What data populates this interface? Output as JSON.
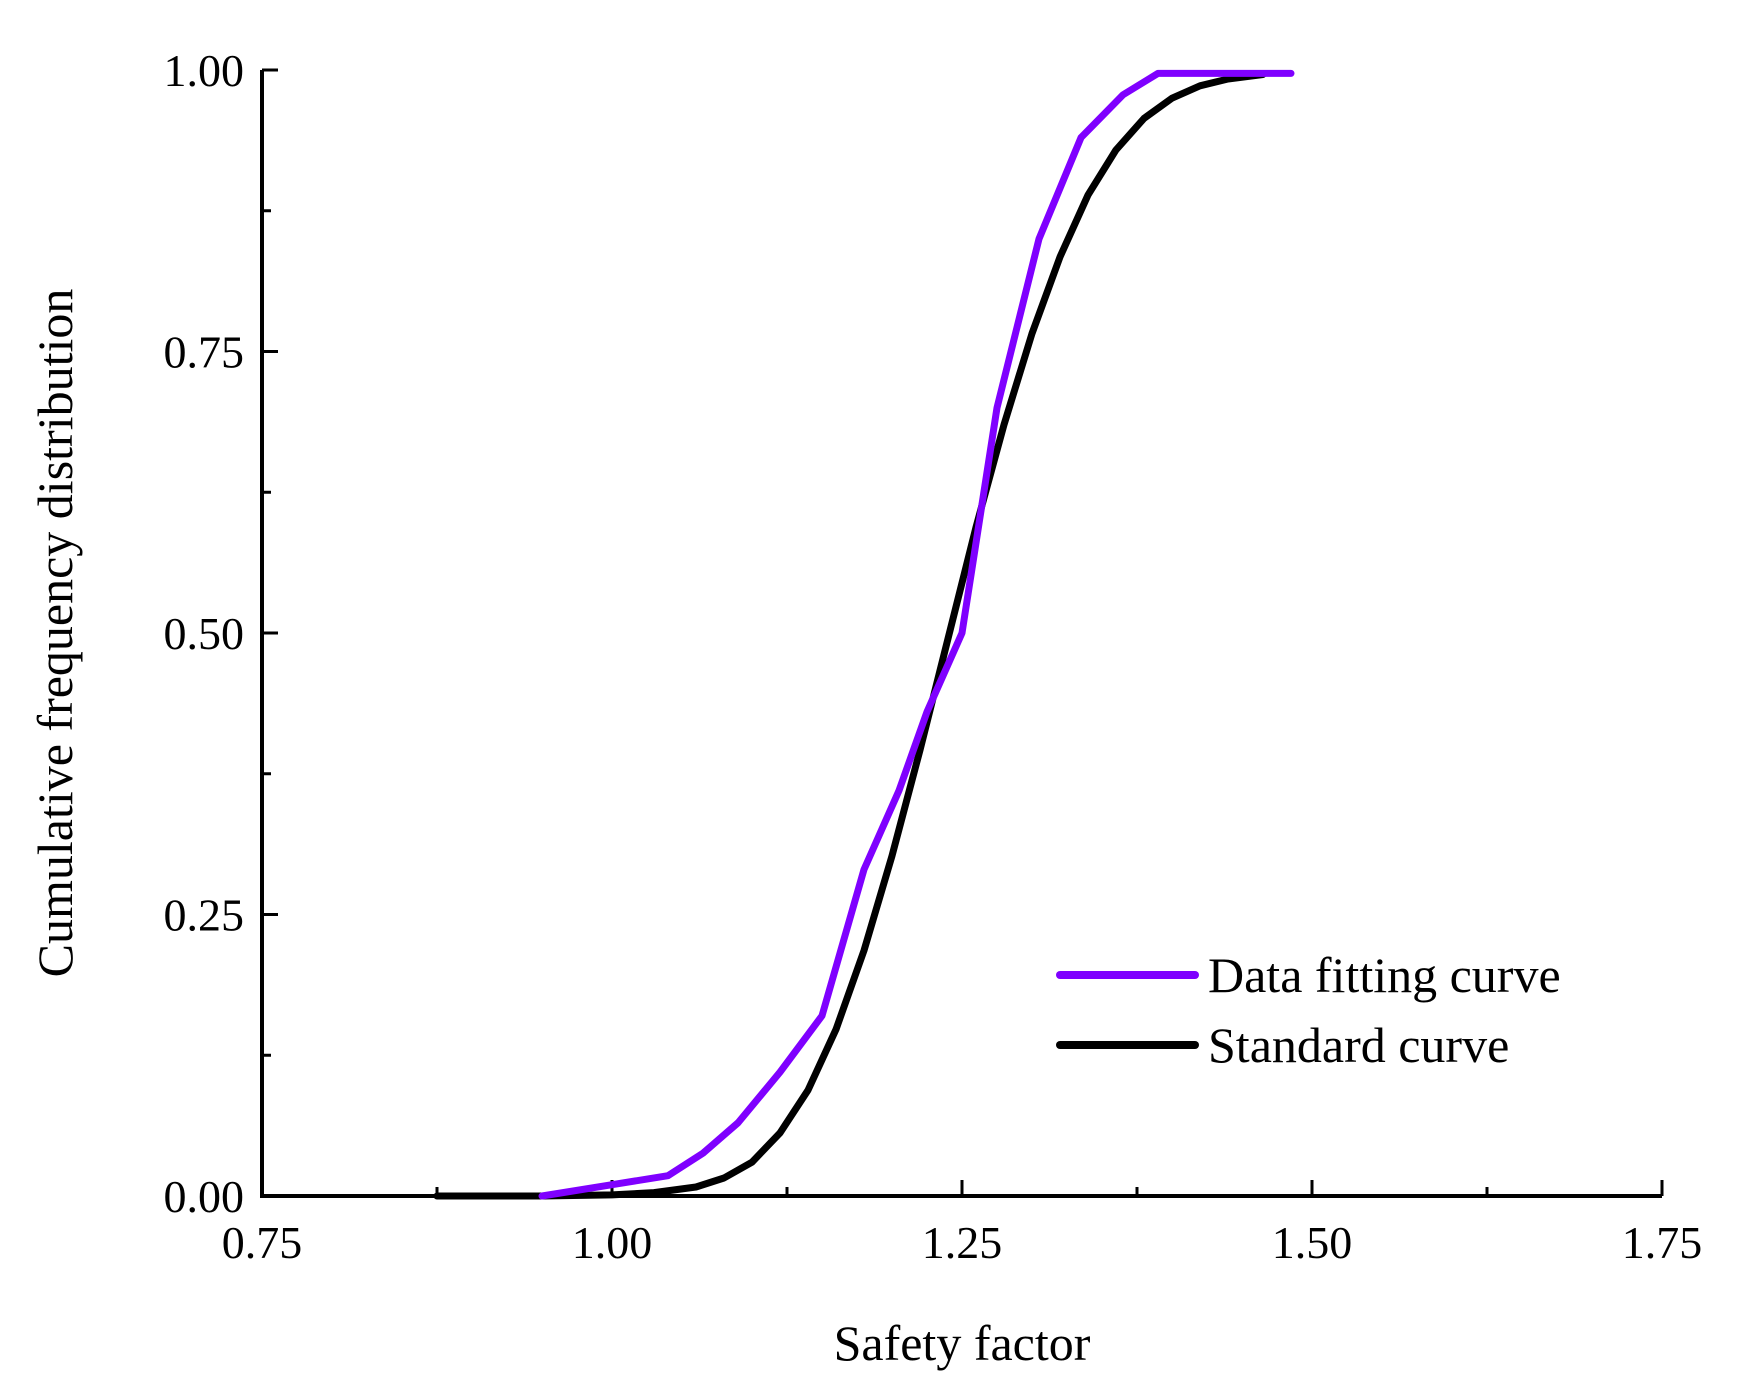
{
  "chart_data": {
    "type": "line",
    "title": "",
    "xlabel": "Safety factor",
    "ylabel": "Cumulative frequency distribution",
    "xlim": [
      0.75,
      1.75
    ],
    "ylim": [
      0,
      1
    ],
    "xticks": [
      "0.75",
      "1.00",
      "1.25",
      "1.50",
      "1.75"
    ],
    "yticks": [
      "0.00",
      "0.25",
      "0.50",
      "0.75",
      "1.00"
    ],
    "xticks_minor": [
      0.875,
      1.125,
      1.375,
      1.625
    ],
    "yticks_minor": [
      0.125,
      0.375,
      0.625,
      0.875
    ],
    "legend_position": "bottom-right",
    "series": [
      {
        "name": "Data fitting curve",
        "color": "#7F00FF",
        "x": [
          0.95,
          1.0,
          1.04,
          1.065,
          1.09,
          1.12,
          1.15,
          1.18,
          1.205,
          1.225,
          1.25,
          1.275,
          1.305,
          1.335,
          1.365,
          1.39,
          1.42,
          1.45,
          1.485
        ],
        "y": [
          0.0,
          0.01,
          0.018,
          0.038,
          0.065,
          0.11,
          0.16,
          0.29,
          0.36,
          0.43,
          0.5,
          0.7,
          0.85,
          0.94,
          0.978,
          0.997,
          0.997,
          0.997,
          0.997
        ]
      },
      {
        "name": "Standard curve",
        "color": "#000000",
        "x": [
          0.875,
          0.95,
          1.0,
          1.03,
          1.06,
          1.08,
          1.1,
          1.12,
          1.14,
          1.16,
          1.18,
          1.2,
          1.22,
          1.24,
          1.26,
          1.28,
          1.3,
          1.32,
          1.34,
          1.36,
          1.38,
          1.4,
          1.42,
          1.44,
          1.465
        ],
        "y": [
          0.0,
          0.0,
          0.001,
          0.003,
          0.008,
          0.016,
          0.03,
          0.056,
          0.094,
          0.148,
          0.218,
          0.302,
          0.396,
          0.495,
          0.594,
          0.685,
          0.766,
          0.834,
          0.889,
          0.929,
          0.957,
          0.975,
          0.986,
          0.992,
          0.996
        ]
      }
    ]
  }
}
